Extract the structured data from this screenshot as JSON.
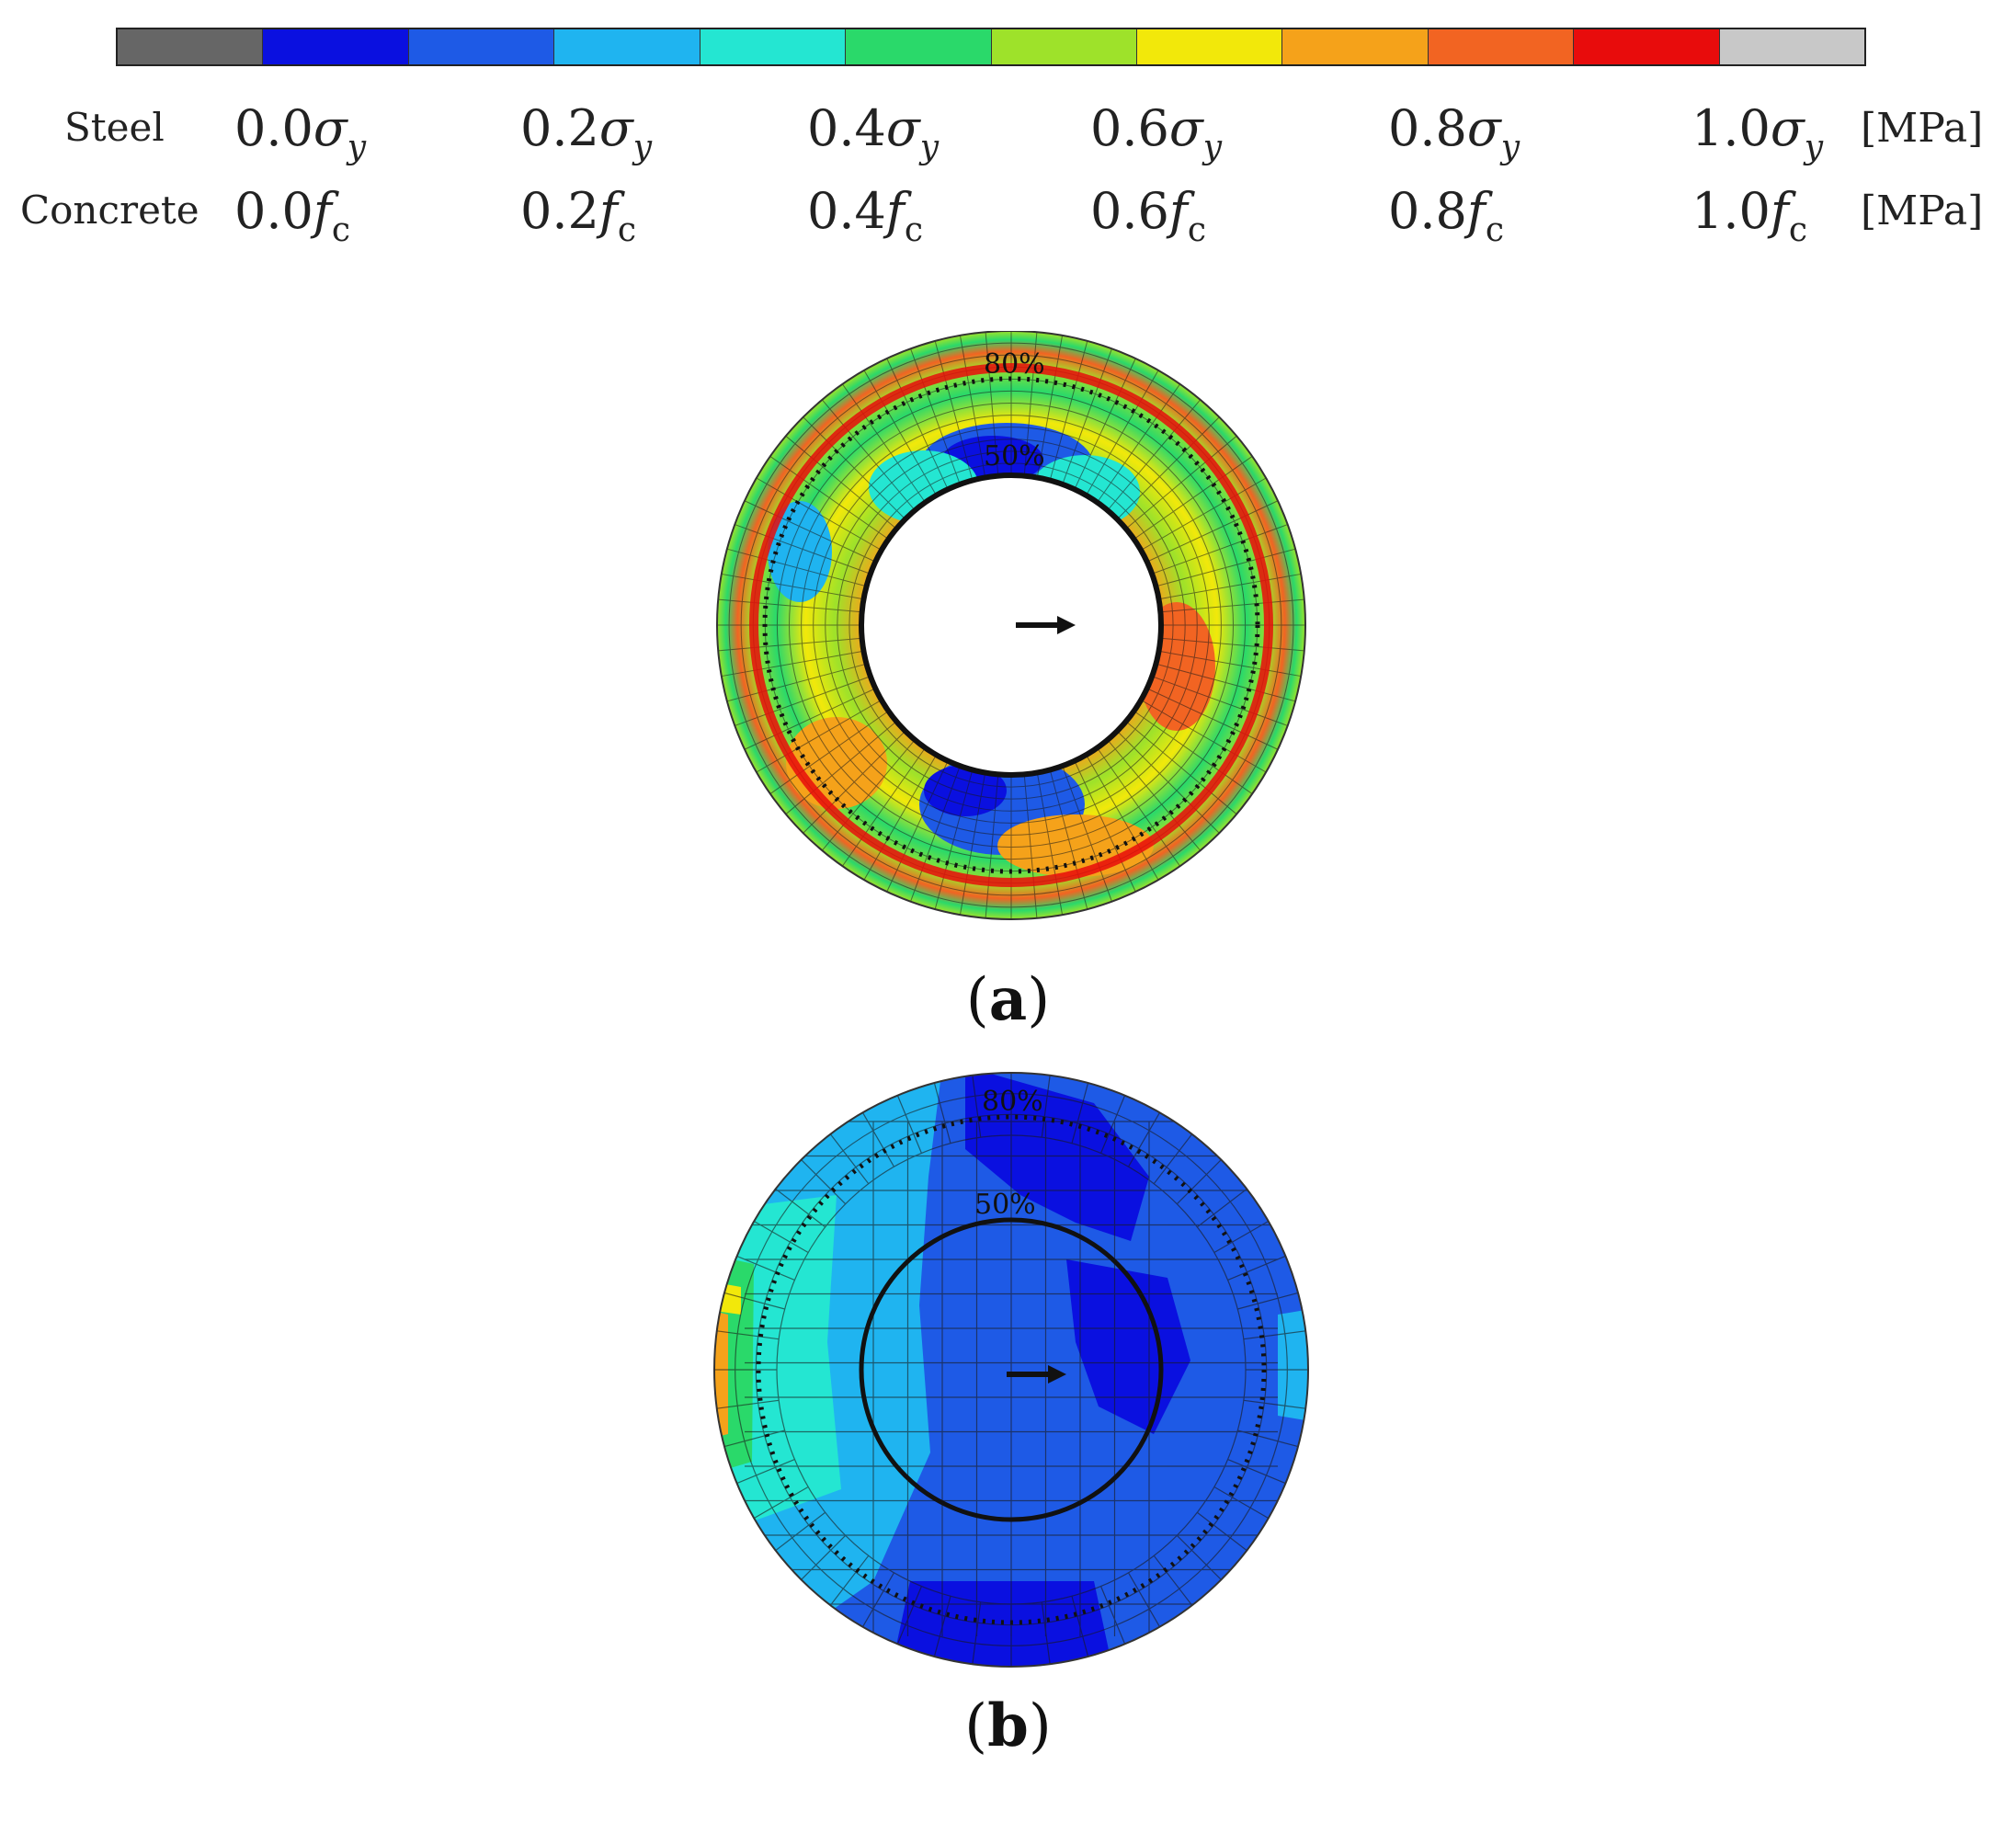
{
  "legend": {
    "colors": [
      "#666666",
      "#0a10e0",
      "#1e5ae6",
      "#1fb4f0",
      "#24e6d2",
      "#2ad96a",
      "#9ee22a",
      "#f2e80a",
      "#f5a21a",
      "#f26422",
      "#e80c0c",
      "#c8c8c8"
    ],
    "steel": {
      "label": "Steel",
      "values": [
        {
          "num": "0.0",
          "sym": "σ",
          "sub": "y"
        },
        {
          "num": "0.2",
          "sym": "σ",
          "sub": "y"
        },
        {
          "num": "0.4",
          "sym": "σ",
          "sub": "y"
        },
        {
          "num": "0.6",
          "sym": "σ",
          "sub": "y"
        },
        {
          "num": "0.8",
          "sym": "σ",
          "sub": "y"
        },
        {
          "num": "1.0",
          "sym": "σ",
          "sub": "y"
        }
      ],
      "unit": "[MPa]"
    },
    "concrete": {
      "label": "Concrete",
      "values": [
        {
          "num": "0.0",
          "sym": "f",
          "sub": "c"
        },
        {
          "num": "0.2",
          "sym": "f",
          "sub": "c"
        },
        {
          "num": "0.4",
          "sym": "f",
          "sub": "c"
        },
        {
          "num": "0.6",
          "sym": "f",
          "sub": "c"
        },
        {
          "num": "0.8",
          "sym": "f",
          "sub": "c"
        },
        {
          "num": "1.0",
          "sym": "f",
          "sub": "c"
        }
      ],
      "unit": "[MPa]"
    }
  },
  "panels": [
    {
      "label": "a",
      "ring_outer": "80%",
      "ring_inner": "50%"
    },
    {
      "label": "b",
      "ring_outer": "80%",
      "ring_inner": "50%"
    }
  ]
}
